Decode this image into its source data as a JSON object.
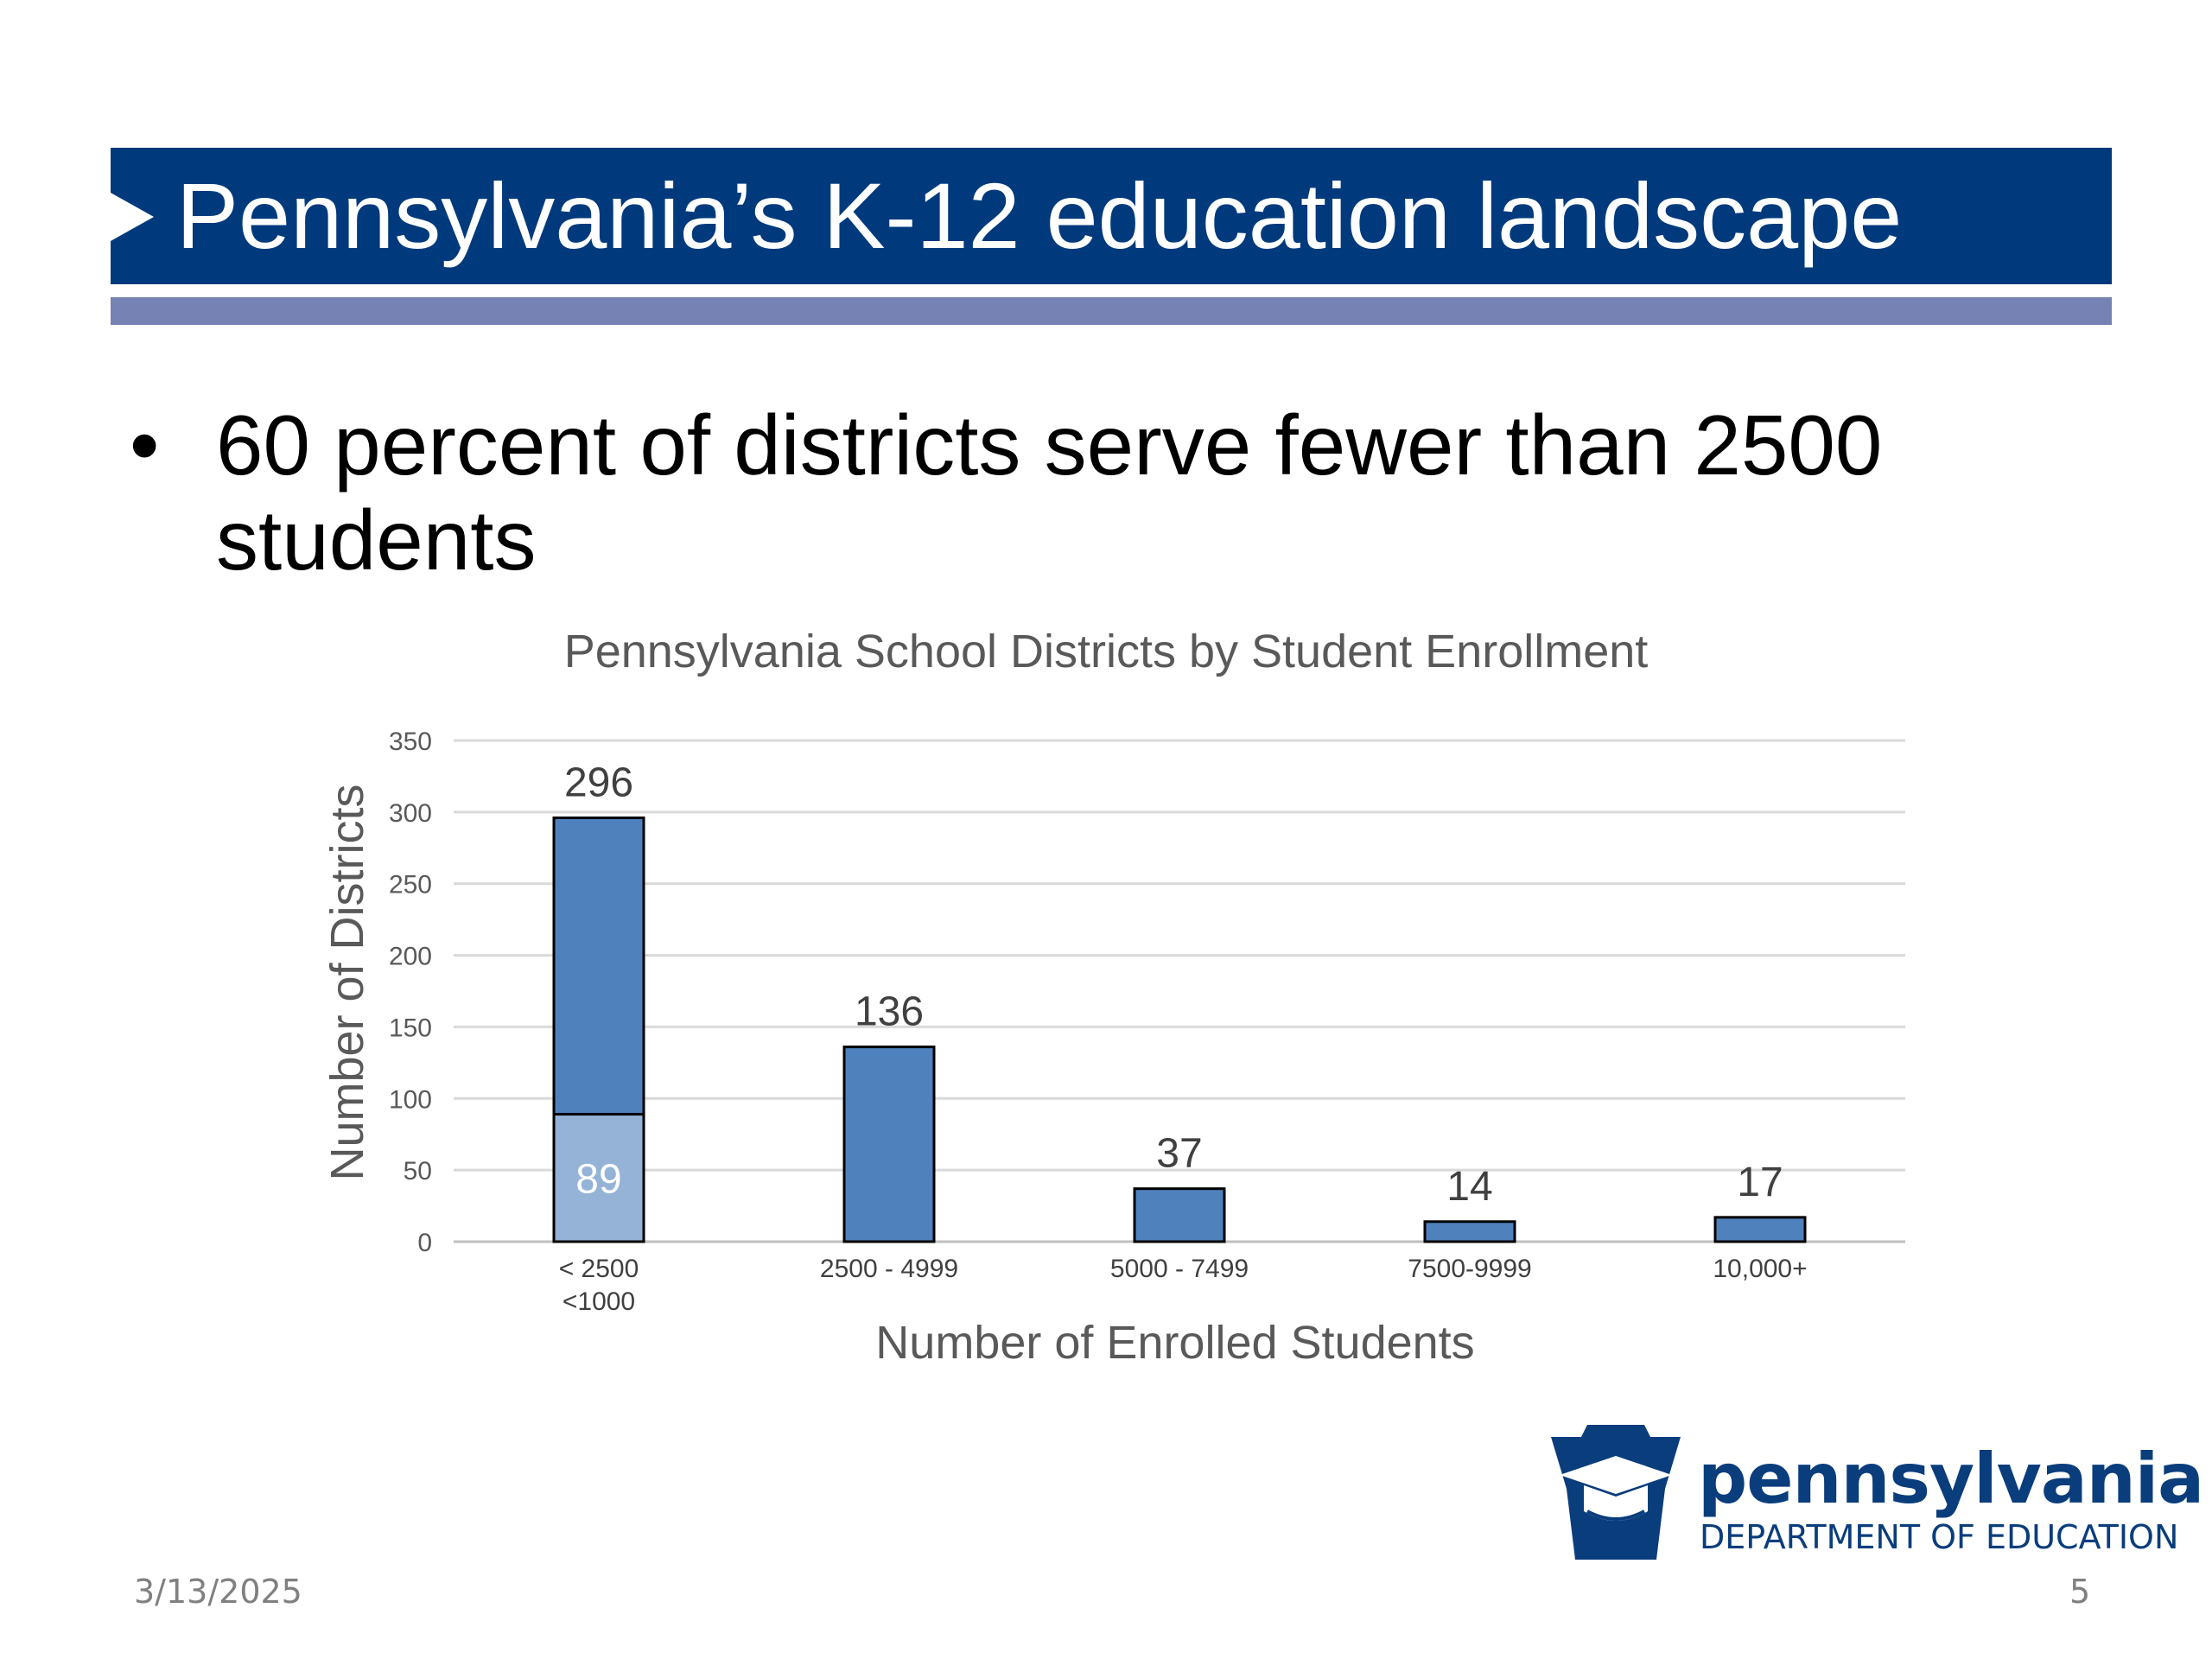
{
  "slide": {
    "title": "Pennsylvania’s K-12 education landscape",
    "bullet_symbol": "•",
    "bullet_text": "60 percent of districts serve fewer than 2500 students",
    "date": "3/13/2025",
    "page_number": "5"
  },
  "logo": {
    "wordmark": "pennsylvania",
    "subtitle": "DEPARTMENT OF EDUCATION",
    "icon": "keystone-graduation-cap-icon"
  },
  "colors": {
    "title_bar": "#003a7d",
    "title_underline": "#7782b4",
    "bar_primary": "#4f81bd",
    "bar_secondary": "#95b3d7"
  },
  "chart_data": {
    "type": "bar",
    "title": "Pennsylvania School Districts by Student Enrollment",
    "xlabel": "Number of Enrolled Students",
    "ylabel": "Number of Districts",
    "ylim": [
      0,
      350
    ],
    "yticks": [
      0,
      50,
      100,
      150,
      200,
      250,
      300,
      350
    ],
    "grid": true,
    "categories": [
      "< 2500",
      "2500 - 4999",
      "5000 - 7499",
      "7500-9999",
      "10,000+"
    ],
    "values": [
      296,
      136,
      37,
      14,
      17
    ],
    "data_labels": [
      "296",
      "136",
      "37",
      "14",
      "17"
    ],
    "subset": {
      "category_index": 0,
      "label": "<1000",
      "value": 89,
      "data_label": "89"
    }
  }
}
